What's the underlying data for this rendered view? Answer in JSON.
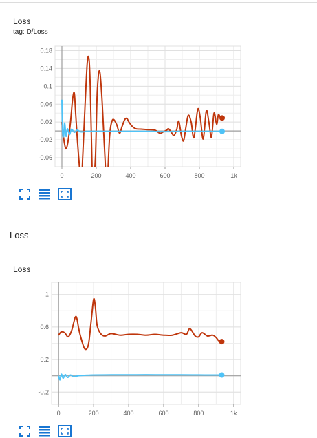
{
  "top_card": {
    "title": "Loss",
    "tag": "tag: D/Loss"
  },
  "section": {
    "title": "Loss"
  },
  "bottom_card": {
    "title": "Loss"
  },
  "toolbar": {
    "icons": [
      "expand-icon",
      "data-table-icon",
      "fit-domain-icon"
    ]
  },
  "colors": {
    "series_orange": "#bf360c",
    "series_blue": "#4fc3f7",
    "grid": "#e0e0e0",
    "axis": "#9e9e9e",
    "toolbar_icon": "#1976d2"
  },
  "chart_data": [
    {
      "type": "line",
      "title": "Loss",
      "subtitle": "tag: D/Loss",
      "xlim": [
        -40,
        1040
      ],
      "ylim": [
        -0.08,
        0.19
      ],
      "x_ticks": [
        0,
        200,
        400,
        600,
        800,
        1000
      ],
      "x_tick_labels": [
        "0",
        "200",
        "400",
        "600",
        "800",
        "1k"
      ],
      "y_ticks": [
        0.18,
        0.14,
        0.1,
        0.06,
        0.02,
        -0.02,
        -0.06
      ],
      "y_tick_labels": [
        "0.18",
        "0.14",
        "0.1",
        "0.06",
        "0.02",
        "-0.02",
        "-0.06"
      ],
      "grid": true,
      "series": [
        {
          "color": "#bf360c",
          "x": [
            0,
            8,
            16,
            24,
            35,
            50,
            62,
            72,
            80,
            90,
            100,
            112,
            122,
            135,
            148,
            158,
            165,
            172,
            180,
            195,
            205,
            218,
            232,
            248,
            262,
            278,
            295,
            318,
            335,
            350,
            365,
            378,
            390,
            410,
            430,
            460,
            500,
            540,
            570,
            590,
            610,
            620,
            635,
            652,
            668,
            680,
            695,
            708,
            720,
            735,
            752,
            768,
            790,
            805,
            822,
            840,
            855,
            870,
            885,
            900,
            910,
            920,
            932
          ],
          "y": [
            0.02,
            -0.01,
            -0.03,
            -0.04,
            -0.025,
            0.02,
            0.07,
            0.085,
            0.04,
            -0.02,
            -0.07,
            -0.12,
            -0.05,
            0.06,
            0.155,
            0.16,
            0.1,
            -0.02,
            -0.12,
            -0.06,
            0.08,
            0.135,
            0.08,
            -0.04,
            -0.12,
            -0.01,
            0.025,
            0.015,
            -0.005,
            0.01,
            0.025,
            0.028,
            0.02,
            0.01,
            0.005,
            0.004,
            0.003,
            0.002,
            -0.005,
            -0.002,
            0.002,
            0.005,
            -0.002,
            -0.01,
            0.003,
            0.022,
            -0.01,
            -0.022,
            0.005,
            0.035,
            0.02,
            -0.015,
            0.048,
            0.03,
            -0.018,
            0.045,
            0.02,
            -0.014,
            0.04,
            0.015,
            0.036,
            0.032,
            0.029
          ]
        },
        {
          "color": "#4fc3f7",
          "x": [
            0,
            4,
            10,
            16,
            24,
            32,
            44,
            56,
            72,
            90,
            110,
            150,
            200,
            300,
            400,
            500,
            600,
            700,
            800,
            900,
            932
          ],
          "y": [
            0.07,
            0.0,
            -0.012,
            0.018,
            -0.012,
            0.005,
            -0.008,
            0.004,
            -0.003,
            0.002,
            -0.002,
            -0.001,
            -0.001,
            -0.001,
            -0.001,
            -0.001,
            -0.0015,
            -0.001,
            -0.001,
            -0.001,
            -0.001
          ]
        }
      ]
    },
    {
      "type": "line",
      "title": "Loss",
      "xlim": [
        -40,
        1040
      ],
      "ylim": [
        -0.35,
        1.15
      ],
      "x_ticks": [
        0,
        200,
        400,
        600,
        800,
        1000
      ],
      "x_tick_labels": [
        "0",
        "200",
        "400",
        "600",
        "800",
        "1k"
      ],
      "y_ticks": [
        1,
        0.6,
        0.2,
        -0.2
      ],
      "y_tick_labels": [
        "1",
        "0.6",
        "0.2",
        "-0.2"
      ],
      "grid": true,
      "series": [
        {
          "color": "#bf360c",
          "x": [
            0,
            15,
            35,
            55,
            75,
            95,
            105,
            115,
            130,
            150,
            170,
            185,
            200,
            210,
            220,
            240,
            265,
            300,
            350,
            400,
            450,
            500,
            550,
            600,
            650,
            700,
            730,
            750,
            780,
            800,
            820,
            850,
            880,
            900,
            915,
            932
          ],
          "y": [
            0.5,
            0.54,
            0.53,
            0.48,
            0.56,
            0.72,
            0.7,
            0.58,
            0.45,
            0.33,
            0.38,
            0.65,
            0.94,
            0.85,
            0.62,
            0.52,
            0.49,
            0.52,
            0.5,
            0.51,
            0.51,
            0.5,
            0.51,
            0.5,
            0.5,
            0.53,
            0.51,
            0.58,
            0.49,
            0.48,
            0.53,
            0.49,
            0.5,
            0.47,
            0.43,
            0.42
          ]
        },
        {
          "color": "#4fc3f7",
          "x": [
            0,
            8,
            16,
            26,
            38,
            52,
            68,
            85,
            110,
            140,
            200,
            300,
            400,
            500,
            600,
            700,
            800,
            900,
            932
          ],
          "y": [
            0.0,
            -0.05,
            0.02,
            -0.03,
            0.015,
            -0.02,
            0.01,
            -0.01,
            0.0,
            0.005,
            0.01,
            0.012,
            0.012,
            0.013,
            0.012,
            0.012,
            0.011,
            0.01,
            0.01
          ]
        }
      ]
    }
  ]
}
